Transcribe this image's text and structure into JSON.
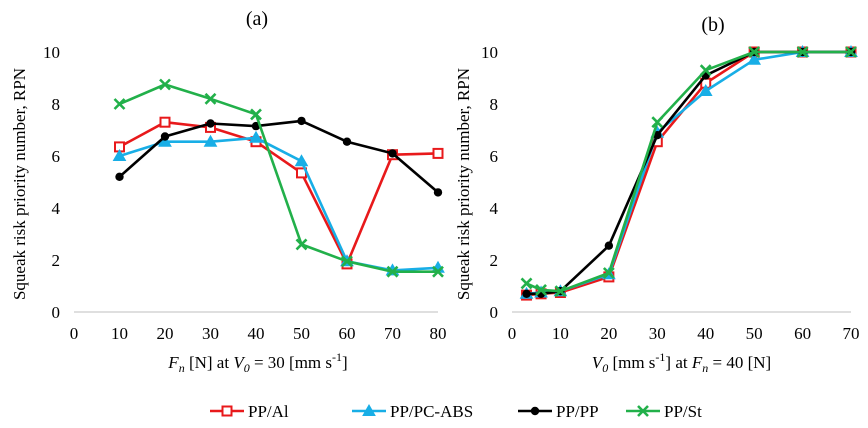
{
  "chart_data": [
    {
      "type": "line",
      "title": "(a)",
      "ylabel": "Squeak risk priority number, RPN",
      "xlabel": {
        "pre": "F",
        "sub": "n",
        "mid": " [N] at ",
        "var2": "V",
        "sub2": "0",
        "post": " = 30 [mm s",
        "sup": "-1",
        "end": "]"
      },
      "xlim": [
        0,
        80
      ],
      "ylim": [
        0,
        10
      ],
      "xticks": [
        0,
        10,
        20,
        30,
        40,
        50,
        60,
        70,
        80
      ],
      "yticks": [
        0,
        2,
        4,
        6,
        8,
        10
      ],
      "xtick_labels": [
        "0",
        "10",
        "20",
        "30",
        "40",
        "50",
        "60",
        "70",
        "80"
      ],
      "ytick_labels": [
        "0",
        "2",
        "4",
        "6",
        "8",
        "10"
      ],
      "grid": false,
      "series": [
        {
          "name": "PP/Al",
          "x": [
            10,
            20,
            30,
            40,
            50,
            60,
            70,
            80
          ],
          "y": [
            6.35,
            7.3,
            7.1,
            6.55,
            5.35,
            1.85,
            6.05,
            6.1
          ]
        },
        {
          "name": "PP/PC-ABS",
          "x": [
            10,
            20,
            30,
            40,
            50,
            60,
            70,
            80
          ],
          "y": [
            6.0,
            6.55,
            6.55,
            6.7,
            5.8,
            1.95,
            1.6,
            1.7
          ]
        },
        {
          "name": "PP/PP",
          "x": [
            10,
            20,
            30,
            40,
            50,
            60,
            70,
            80
          ],
          "y": [
            5.2,
            6.75,
            7.25,
            7.15,
            7.35,
            6.55,
            6.1,
            4.6
          ]
        },
        {
          "name": "PP/St",
          "x": [
            10,
            20,
            30,
            40,
            50,
            60,
            70,
            80
          ],
          "y": [
            8.0,
            8.75,
            8.2,
            7.6,
            2.6,
            1.95,
            1.55,
            1.55
          ]
        }
      ]
    },
    {
      "type": "line",
      "title": "(b)",
      "ylabel": "Squeak risk priority number, RPN",
      "xlabel": {
        "pre": "V",
        "sub": "0",
        "mid": " [mm s",
        "sup": "-1",
        "post": "] at ",
        "var2": "F",
        "sub2": "n",
        "end": " = 40 [N]"
      },
      "xlim": [
        0,
        70
      ],
      "ylim": [
        0,
        10
      ],
      "xticks": [
        0,
        10,
        20,
        30,
        40,
        50,
        60,
        70
      ],
      "yticks": [
        0,
        2,
        4,
        6,
        8,
        10
      ],
      "xtick_labels": [
        "0",
        "10",
        "20",
        "30",
        "40",
        "50",
        "60",
        "70"
      ],
      "ytick_labels": [
        "0",
        "2.0",
        "4.0",
        "6.0",
        "8.0",
        "10.0"
      ],
      "ytick_labels_display": [
        "0",
        "2",
        "4",
        "6",
        "8",
        "10"
      ],
      "grid": false,
      "series": [
        {
          "name": "PP/Al",
          "x": [
            3,
            6,
            10,
            20,
            30,
            40,
            50,
            60,
            70
          ],
          "y": [
            0.65,
            0.7,
            0.75,
            1.35,
            6.55,
            8.8,
            10,
            10,
            10
          ]
        },
        {
          "name": "PP/PC-ABS",
          "x": [
            3,
            6,
            10,
            20,
            30,
            40,
            50,
            60,
            70
          ],
          "y": [
            0.7,
            0.75,
            0.8,
            1.45,
            6.9,
            8.5,
            9.7,
            10,
            10
          ]
        },
        {
          "name": "PP/PP",
          "x": [
            3,
            6,
            10,
            20,
            30,
            40,
            50,
            60,
            70
          ],
          "y": [
            0.7,
            0.7,
            0.8,
            2.55,
            6.8,
            9.1,
            10,
            10,
            10
          ]
        },
        {
          "name": "PP/St",
          "x": [
            3,
            6,
            10,
            20,
            30,
            40,
            50,
            60,
            70
          ],
          "y": [
            1.1,
            0.85,
            0.8,
            1.5,
            7.3,
            9.3,
            10,
            10,
            10
          ]
        }
      ]
    }
  ],
  "legend": {
    "placement": "bottom-center",
    "items": [
      {
        "label": "PP/Al",
        "color": "#e8191b",
        "marker": "square-open"
      },
      {
        "label": "PP/PC-ABS",
        "color": "#18aee6",
        "marker": "triangle"
      },
      {
        "label": "PP/PP",
        "color": "#000000",
        "marker": "circle"
      },
      {
        "label": "PP/St",
        "color": "#22b04a",
        "marker": "x"
      }
    ]
  }
}
